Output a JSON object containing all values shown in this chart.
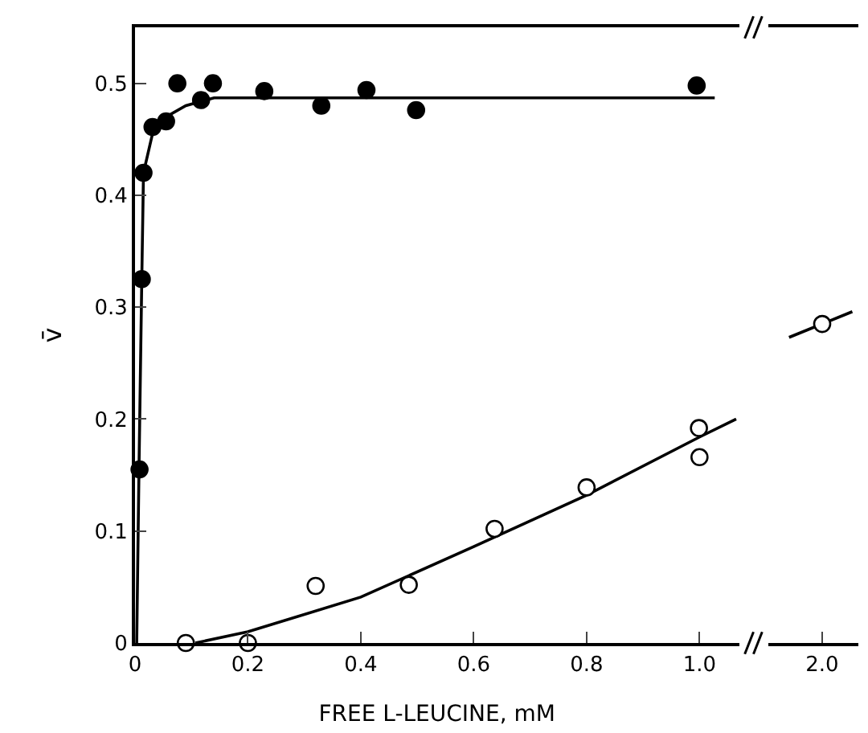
{
  "chart_data": [
    {
      "type": "scatter",
      "xlabel": "FREE L-LEUCINE, mM",
      "ylabel": "v̄",
      "xlim": [
        0,
        1.07
      ],
      "ylim": [
        0,
        0.55
      ],
      "xticks": [
        0,
        0.2,
        0.4,
        0.6,
        0.8,
        {
          "value": 1.0,
          "label": "1.0"
        }
      ],
      "yticks": [
        0,
        0.1,
        0.2,
        0.3,
        0.4,
        0.5
      ],
      "legend": false,
      "series": [
        {
          "type": "line",
          "marker": "none",
          "color": "#000000",
          "x": [
            0.003,
            0.007,
            0.012,
            0.015,
            0.031,
            0.055,
            0.09,
            0.14,
            1.027
          ],
          "values": [
            0,
            0.155,
            0.325,
            0.42,
            0.455,
            0.47,
            0.48,
            0.487,
            0.487
          ]
        },
        {
          "type": "line",
          "marker": "none",
          "color": "#000000",
          "x": [
            0.107,
            0.2,
            0.4,
            0.6,
            0.8,
            1.0,
            1.065
          ],
          "values": [
            0,
            0.01,
            0.041,
            0.086,
            0.132,
            0.184,
            0.2
          ]
        },
        {
          "marker": "circle",
          "color": "#000000",
          "x": [
            0.008,
            0.012,
            0.015,
            0.031,
            0.055,
            0.075,
            0.117,
            0.138,
            0.229,
            0.33,
            0.41,
            0.498,
            0.995
          ],
          "values": [
            0.155,
            0.325,
            0.42,
            0.461,
            0.466,
            0.5,
            0.485,
            0.5,
            0.493,
            0.48,
            0.494,
            0.476,
            0.498
          ]
        },
        {
          "marker": "circle",
          "color": "#ffffff",
          "x": [
            0.09,
            0.2,
            0.32,
            0.485,
            0.637,
            0.8,
            0.999,
            1.0
          ],
          "values": [
            0,
            0,
            0.051,
            0.052,
            0.102,
            0.139,
            0.192,
            0.166
          ]
        }
      ]
    },
    {
      "type": "scatter",
      "categories": [
        "2.0"
      ],
      "ylim": [
        0,
        0.55
      ],
      "tick_labels": "x",
      "legend": false,
      "series": [
        {
          "marker": "circle",
          "color": "#ffffff",
          "values": [
            0.285
          ]
        }
      ]
    }
  ]
}
